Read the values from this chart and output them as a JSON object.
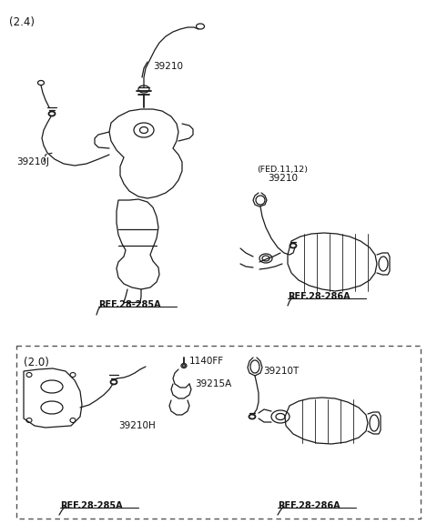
{
  "bg_color": "#ffffff",
  "line_color": "#1a1a1a",
  "label_color": "#111111",
  "title_24": "(2.4)",
  "title_20": "(2.0)",
  "label_39210": "39210",
  "label_39210J": "39210J",
  "label_fed": "(FED.11,12)",
  "label_fed2": "39210",
  "label_ref285A_1": "REF.28-285A",
  "label_ref286A_1": "REF.28-286A",
  "label_1140FF": "1140FF",
  "label_39215A": "39215A",
  "label_39210T": "39210T",
  "label_39210H": "39210H",
  "label_ref285A_2": "REF.28-285A",
  "label_ref286A_2": "REF.28-286A",
  "fig_width": 4.8,
  "fig_height": 5.76,
  "dpi": 100
}
